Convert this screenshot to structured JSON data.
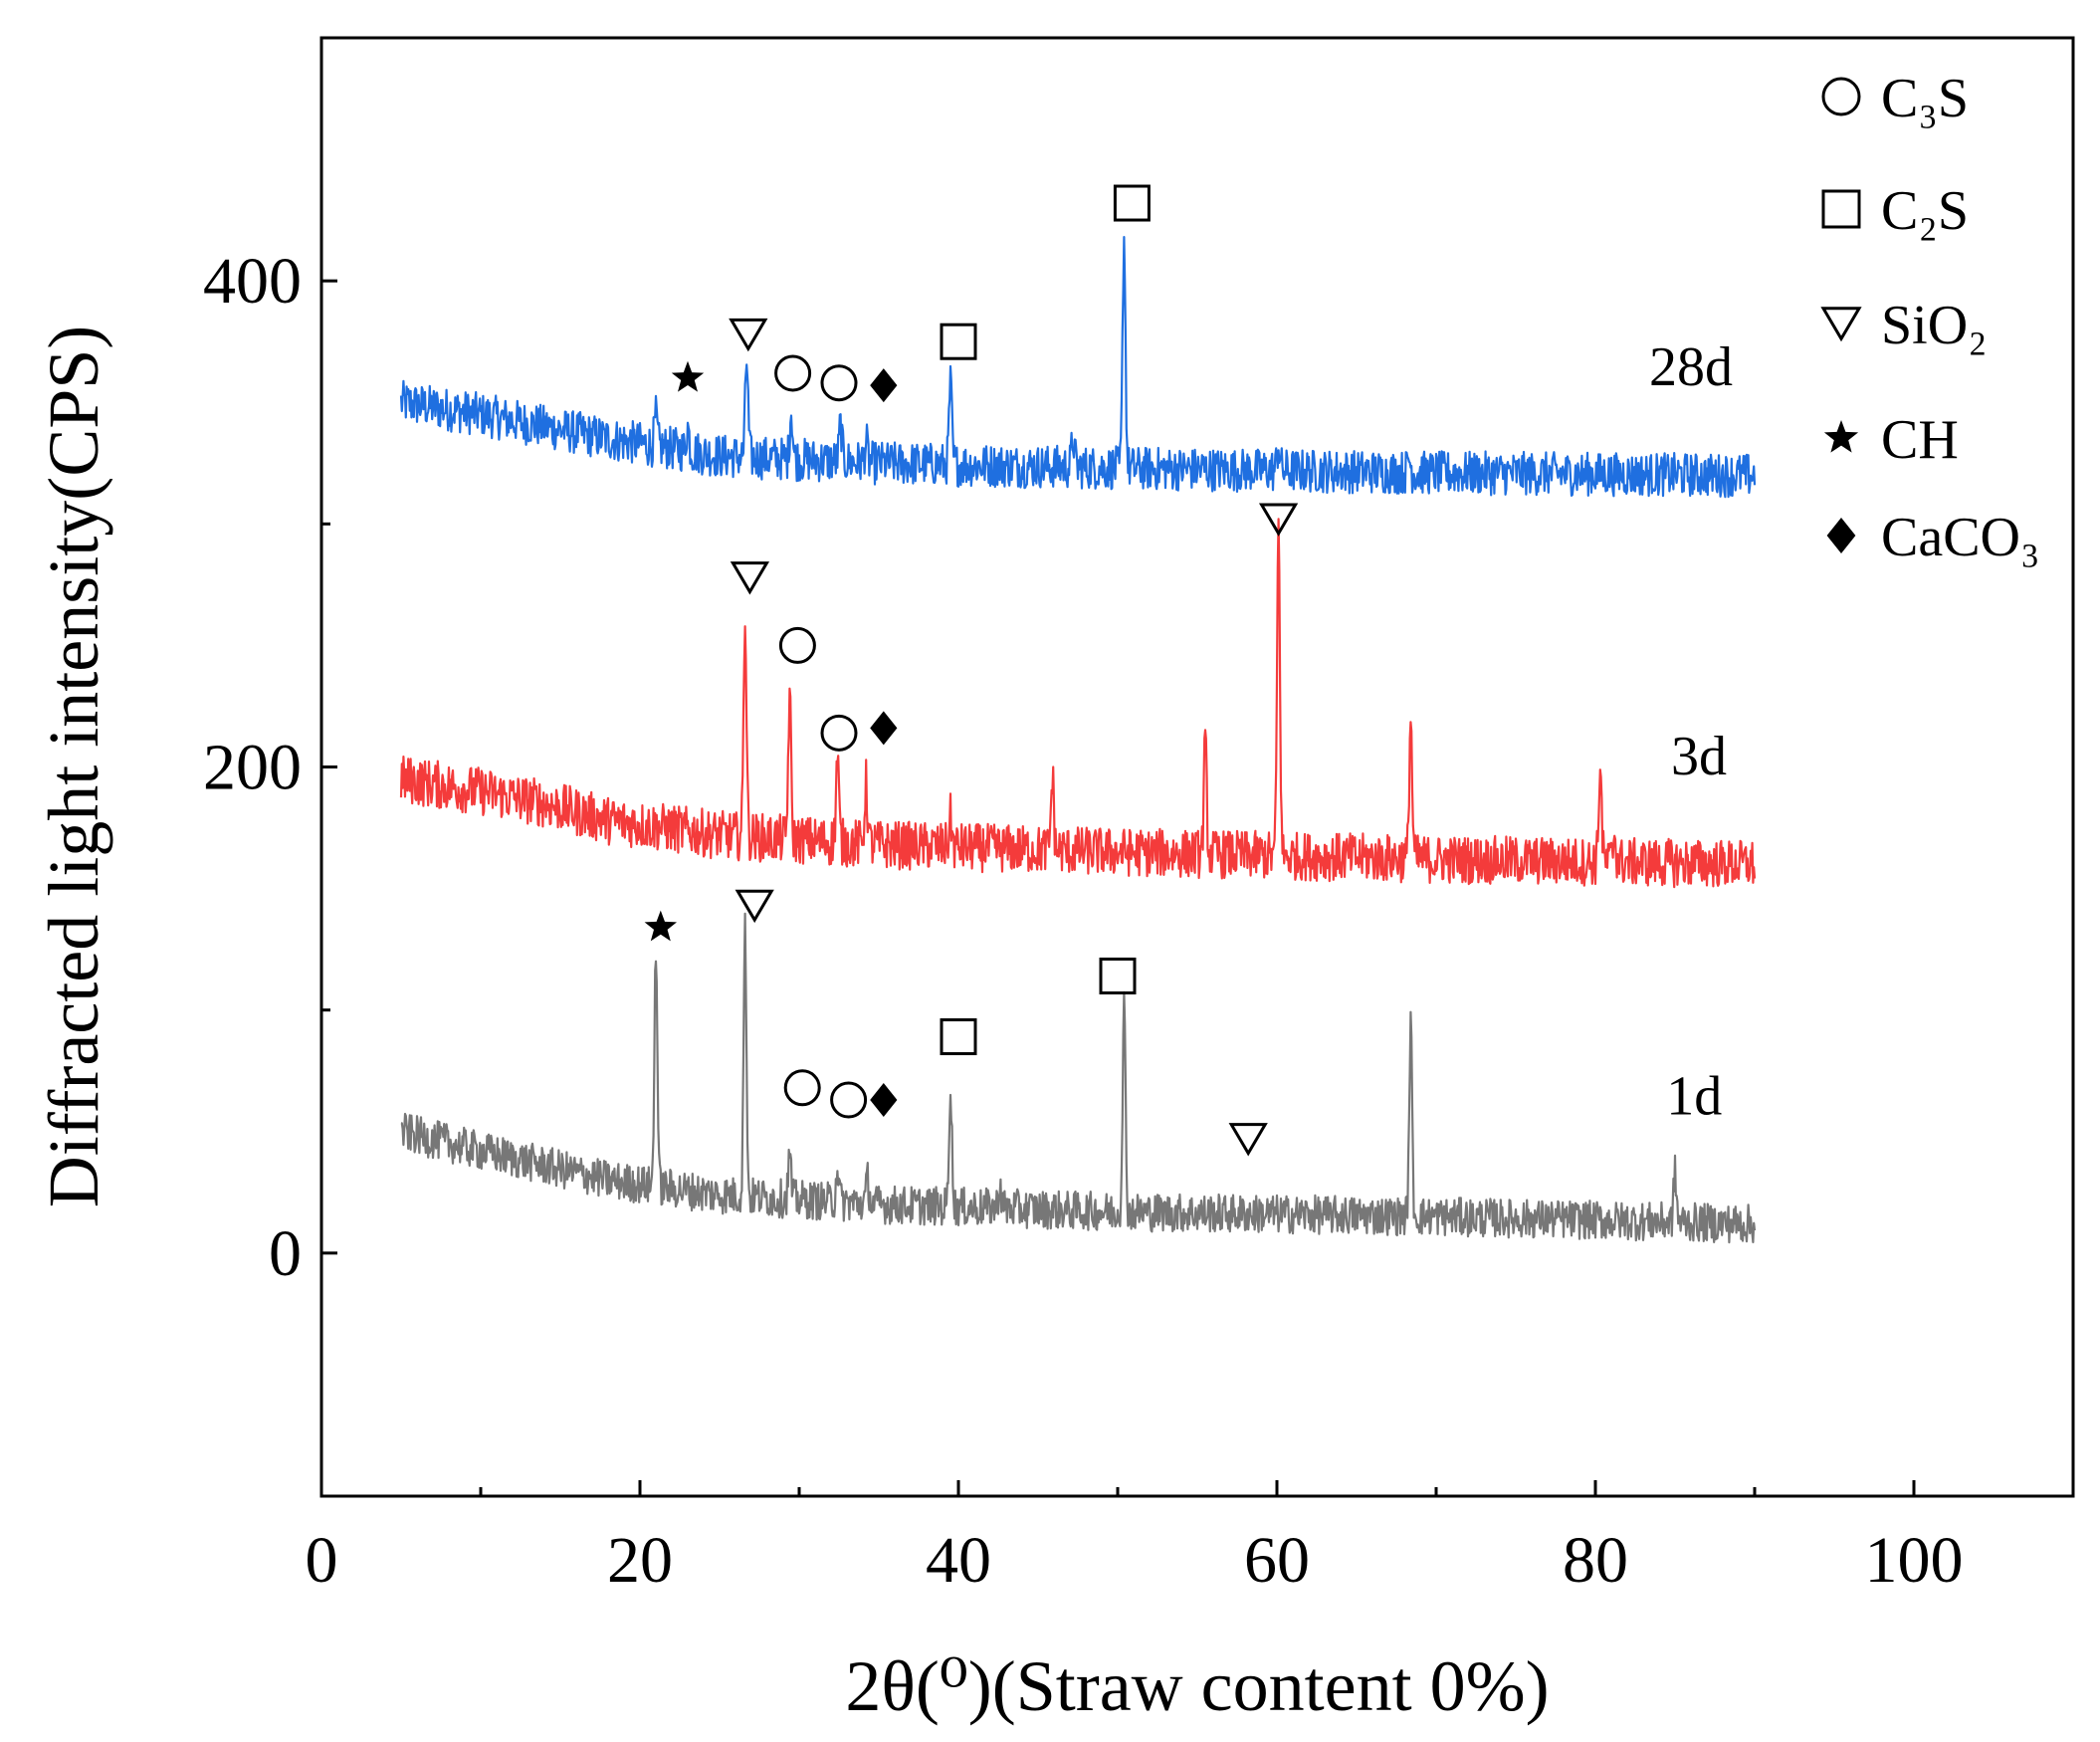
{
  "chart_data": {
    "type": "line",
    "xlabel": "2θ(⁰)(Straw content 0%)",
    "ylabel": "Diffracted light intensity(CPS)",
    "xlim": [
      0,
      110
    ],
    "ylim": [
      -100,
      500
    ],
    "x_ticks": [
      "0",
      "20",
      "40",
      "60",
      "80",
      "100"
    ],
    "y_ticks": [
      "0",
      "200",
      "400"
    ],
    "legend": {
      "placement": "top-right",
      "entries": [
        {
          "marker": "circle-open",
          "label": "C₃S"
        },
        {
          "marker": "square-open",
          "label": "C₂S"
        },
        {
          "marker": "triangle-down-open",
          "label": "SiO₂"
        },
        {
          "marker": "star-filled",
          "label": "CH"
        },
        {
          "marker": "diamond-filled",
          "label": "CaCO₃"
        }
      ]
    },
    "series": [
      {
        "name": "28d",
        "color": "#1f6fe0",
        "baseline": [
          [
            5,
            350
          ],
          [
            10,
            345
          ],
          [
            14,
            340
          ],
          [
            18,
            335
          ],
          [
            25,
            328
          ],
          [
            35,
            325
          ],
          [
            50,
            323
          ],
          [
            70,
            321
          ],
          [
            90,
            320
          ]
        ],
        "noise": 9,
        "peaks": [
          [
            21,
            12
          ],
          [
            23,
            10
          ],
          [
            26.7,
            40
          ],
          [
            29.5,
            20
          ],
          [
            32.6,
            15
          ],
          [
            34.2,
            8
          ],
          [
            39.5,
            33
          ],
          [
            47.2,
            12
          ],
          [
            50.4,
            95
          ],
          [
            60.1,
            10
          ],
          [
            68.3,
            6
          ]
        ],
        "markers": [
          {
            "type": "star-filled",
            "x": 23,
            "y": 360
          },
          {
            "type": "triangle-down-open",
            "x": 26.8,
            "y": 378
          },
          {
            "type": "circle-open",
            "x": 29.6,
            "y": 362
          },
          {
            "type": "circle-open",
            "x": 32.5,
            "y": 358
          },
          {
            "type": "diamond-filled",
            "x": 35.3,
            "y": 357
          },
          {
            "type": "square-open",
            "x": 40,
            "y": 375
          },
          {
            "type": "square-open",
            "x": 50.9,
            "y": 432
          }
        ],
        "label_x": 86,
        "label_y": 357
      },
      {
        "name": "3d",
        "color": "#f43b3b",
        "baseline": [
          [
            5,
            195
          ],
          [
            10,
            190
          ],
          [
            14,
            185
          ],
          [
            18,
            178
          ],
          [
            25,
            172
          ],
          [
            35,
            168
          ],
          [
            50,
            165
          ],
          [
            70,
            162
          ],
          [
            90,
            160
          ]
        ],
        "noise": 10,
        "peaks": [
          [
            26.6,
            92
          ],
          [
            29.4,
            58
          ],
          [
            32.4,
            35
          ],
          [
            34.2,
            25
          ],
          [
            39.5,
            12
          ],
          [
            45.9,
            30
          ],
          [
            55.5,
            45
          ],
          [
            60.1,
            135
          ],
          [
            68.4,
            58
          ],
          [
            80.3,
            40
          ],
          [
            81.2,
            12
          ]
        ],
        "markers": [
          {
            "type": "triangle-down-open",
            "x": 26.9,
            "y": 278
          },
          {
            "type": "circle-open",
            "x": 29.9,
            "y": 250
          },
          {
            "type": "circle-open",
            "x": 32.5,
            "y": 214
          },
          {
            "type": "diamond-filled",
            "x": 35.3,
            "y": 216
          },
          {
            "type": "triangle-down-open",
            "x": 60.1,
            "y": 302
          }
        ],
        "label_x": 86.5,
        "label_y": 197
      },
      {
        "name": "1d",
        "color": "#777777",
        "baseline": [
          [
            5,
            50
          ],
          [
            10,
            42
          ],
          [
            14,
            36
          ],
          [
            18,
            30
          ],
          [
            25,
            24
          ],
          [
            35,
            20
          ],
          [
            50,
            17
          ],
          [
            70,
            15
          ],
          [
            90,
            12
          ]
        ],
        "noise": 8,
        "peaks": [
          [
            21,
            100
          ],
          [
            26.6,
            110
          ],
          [
            29.4,
            18
          ],
          [
            32.4,
            15
          ],
          [
            34.3,
            10
          ],
          [
            39.5,
            50
          ],
          [
            42.6,
            10
          ],
          [
            50.4,
            85
          ],
          [
            68.4,
            78
          ],
          [
            85,
            20
          ]
        ],
        "markers": [
          {
            "type": "star-filled",
            "x": 21.3,
            "y": 134
          },
          {
            "type": "triangle-down-open",
            "x": 27.2,
            "y": 143
          },
          {
            "type": "circle-open",
            "x": 30.2,
            "y": 68
          },
          {
            "type": "circle-open",
            "x": 33.1,
            "y": 63
          },
          {
            "type": "diamond-filled",
            "x": 35.3,
            "y": 63
          },
          {
            "type": "square-open",
            "x": 40,
            "y": 89
          },
          {
            "type": "square-open",
            "x": 50,
            "y": 114
          },
          {
            "type": "triangle-down-open",
            "x": 58.2,
            "y": 47
          }
        ],
        "label_x": 86.2,
        "label_y": 57
      }
    ]
  }
}
